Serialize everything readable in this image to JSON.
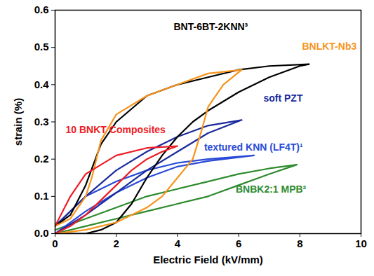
{
  "chart_data": {
    "type": "line",
    "x_label": "Electric Field (kV/mm)",
    "y_label": "strain (%)",
    "xlim": [
      0,
      10
    ],
    "xticks": [
      0,
      2,
      4,
      6,
      8,
      10
    ],
    "ylim": [
      0,
      0.6
    ],
    "yticks": [
      {
        "value": 0,
        "label": "0.0"
      },
      0.1,
      0.2,
      0.3,
      0.4,
      0.5,
      0.6
    ],
    "grid": false,
    "series": [
      {
        "name": "BNBK2:1 MPB²",
        "color": "#2e8b2e",
        "x": [
          0,
          1,
          2,
          3,
          4,
          5,
          6,
          7,
          7.9,
          7,
          6,
          5,
          4,
          3,
          2,
          1,
          0
        ],
        "values": [
          0,
          0.02,
          0.04,
          0.06,
          0.08,
          0.1,
          0.13,
          0.16,
          0.185,
          0.175,
          0.16,
          0.14,
          0.12,
          0.1,
          0.07,
          0.04,
          0.01
        ]
      },
      {
        "name": "textured KNN (LF4T)¹",
        "color": "#2a4bd7",
        "x": [
          0,
          1,
          2,
          3,
          4,
          5,
          6.5,
          5,
          4,
          3,
          2,
          1,
          0
        ],
        "values": [
          0,
          0.06,
          0.11,
          0.15,
          0.18,
          0.195,
          0.21,
          0.2,
          0.19,
          0.17,
          0.14,
          0.1,
          0.02
        ]
      },
      {
        "name": "soft PZT",
        "color": "#1a2a9c",
        "x": [
          0,
          1,
          2,
          3,
          4,
          5,
          6.1,
          5,
          4,
          3,
          2,
          1,
          0
        ],
        "values": [
          0,
          0.05,
          0.11,
          0.17,
          0.22,
          0.27,
          0.305,
          0.29,
          0.26,
          0.22,
          0.17,
          0.1,
          0.02
        ]
      },
      {
        "name": "BNT-6BT-2KNN³",
        "color": "#000000",
        "x": [
          0,
          1,
          1.5,
          2,
          2.5,
          3,
          3.5,
          4,
          4.5,
          5,
          6,
          7,
          8,
          8.3,
          7,
          6,
          5,
          4,
          3,
          2,
          1.5,
          1,
          0.5,
          0
        ],
        "values": [
          0,
          0,
          0.01,
          0.03,
          0.08,
          0.15,
          0.21,
          0.26,
          0.3,
          0.33,
          0.38,
          0.42,
          0.45,
          0.455,
          0.45,
          0.44,
          0.42,
          0.4,
          0.37,
          0.3,
          0.24,
          0.13,
          0.05,
          0.02
        ]
      },
      {
        "name": "BNLKT-Nb3",
        "color": "#f7941d",
        "x": [
          0,
          1,
          2,
          3,
          3.5,
          4,
          4.5,
          4.8,
          5,
          5.5,
          6.1,
          5,
          4,
          3,
          2,
          1.5,
          1.2,
          1,
          0.5,
          0
        ],
        "values": [
          0,
          0.01,
          0.03,
          0.07,
          0.1,
          0.15,
          0.2,
          0.28,
          0.34,
          0.4,
          0.44,
          0.43,
          0.4,
          0.37,
          0.32,
          0.25,
          0.15,
          0.1,
          0.04,
          0.02
        ]
      },
      {
        "name": "10 BNKT Composites",
        "color": "#ee1c25",
        "x": [
          0,
          0.5,
          1,
          1.5,
          2,
          2.5,
          3,
          3.5,
          4,
          3,
          2,
          1,
          0.5,
          0
        ],
        "values": [
          0,
          0.02,
          0.05,
          0.09,
          0.13,
          0.17,
          0.2,
          0.22,
          0.235,
          0.23,
          0.21,
          0.16,
          0.1,
          0.02
        ]
      }
    ]
  }
}
